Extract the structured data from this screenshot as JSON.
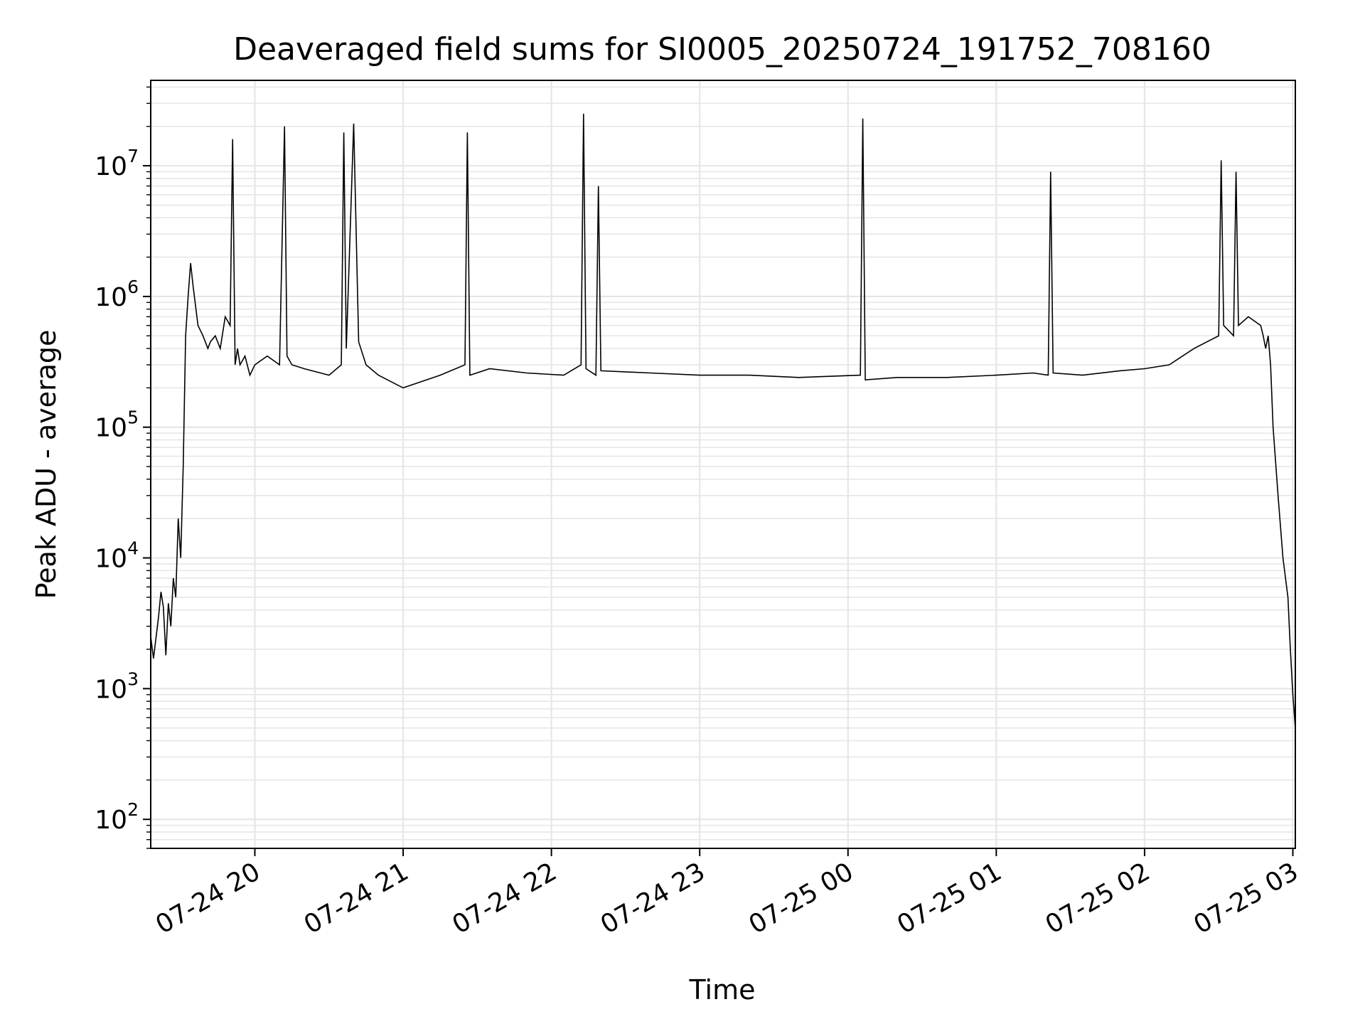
{
  "chart_data": {
    "type": "line",
    "title": "Deaveraged field sums for SI0005_20250724_191752_708160",
    "xlabel": "Time",
    "ylabel": "Peak ADU - average",
    "yscale": "log",
    "ylim": [
      60,
      45000000
    ],
    "xlim": [
      "2025-07-24 19:17:52",
      "2025-07-25 03:01:00"
    ],
    "grid": true,
    "legend": "none",
    "line_color": "#000000",
    "grid_color": "#e6e6e6",
    "x_ticks": [
      {
        "label": "07-24 20",
        "t": "2025-07-24 20:00"
      },
      {
        "label": "07-24 21",
        "t": "2025-07-24 21:00"
      },
      {
        "label": "07-24 22",
        "t": "2025-07-24 22:00"
      },
      {
        "label": "07-24 23",
        "t": "2025-07-24 23:00"
      },
      {
        "label": "07-25 00",
        "t": "2025-07-25 00:00"
      },
      {
        "label": "07-25 01",
        "t": "2025-07-25 01:00"
      },
      {
        "label": "07-25 02",
        "t": "2025-07-25 02:00"
      },
      {
        "label": "07-25 03",
        "t": "2025-07-25 03:00"
      }
    ],
    "y_ticks": [
      {
        "base": "10",
        "exp": "2",
        "value": 100
      },
      {
        "base": "10",
        "exp": "3",
        "value": 1000
      },
      {
        "base": "10",
        "exp": "4",
        "value": 10000
      },
      {
        "base": "10",
        "exp": "5",
        "value": 100000
      },
      {
        "base": "10",
        "exp": "6",
        "value": 1000000
      },
      {
        "base": "10",
        "exp": "7",
        "value": 10000000
      }
    ],
    "series": [
      {
        "x": [
          "2025-07-24 19:17:52",
          "2025-07-24 19:19",
          "2025-07-24 19:21",
          "2025-07-24 19:22",
          "2025-07-24 19:23",
          "2025-07-24 19:24",
          "2025-07-24 19:25",
          "2025-07-24 19:26",
          "2025-07-24 19:27",
          "2025-07-24 19:28",
          "2025-07-24 19:29",
          "2025-07-24 19:30",
          "2025-07-24 19:31",
          "2025-07-24 19:32",
          "2025-07-24 19:33",
          "2025-07-24 19:34",
          "2025-07-24 19:35",
          "2025-07-24 19:37",
          "2025-07-24 19:39",
          "2025-07-24 19:41",
          "2025-07-24 19:42",
          "2025-07-24 19:44",
          "2025-07-24 19:46",
          "2025-07-24 19:48",
          "2025-07-24 19:50",
          "2025-07-24 19:51",
          "2025-07-24 19:52",
          "2025-07-24 19:53",
          "2025-07-24 19:54",
          "2025-07-24 19:56",
          "2025-07-24 19:58",
          "2025-07-24 20:00",
          "2025-07-24 20:05",
          "2025-07-24 20:10",
          "2025-07-24 20:12",
          "2025-07-24 20:13",
          "2025-07-24 20:15",
          "2025-07-24 20:20",
          "2025-07-24 20:30",
          "2025-07-24 20:35",
          "2025-07-24 20:36",
          "2025-07-24 20:37",
          "2025-07-24 20:38",
          "2025-07-24 20:40",
          "2025-07-24 20:42",
          "2025-07-24 20:45",
          "2025-07-24 20:50",
          "2025-07-24 21:00",
          "2025-07-24 21:15",
          "2025-07-24 21:25",
          "2025-07-24 21:26",
          "2025-07-24 21:27",
          "2025-07-24 21:35",
          "2025-07-24 21:50",
          "2025-07-24 22:05",
          "2025-07-24 22:12",
          "2025-07-24 22:13",
          "2025-07-24 22:14",
          "2025-07-24 22:18",
          "2025-07-24 22:19",
          "2025-07-24 22:20",
          "2025-07-24 22:40",
          "2025-07-24 23:00",
          "2025-07-24 23:20",
          "2025-07-24 23:40",
          "2025-07-25 00:05",
          "2025-07-25 00:06",
          "2025-07-25 00:07",
          "2025-07-25 00:20",
          "2025-07-25 00:40",
          "2025-07-25 01:00",
          "2025-07-25 01:15",
          "2025-07-25 01:21",
          "2025-07-25 01:22",
          "2025-07-25 01:23",
          "2025-07-25 01:35",
          "2025-07-25 01:50",
          "2025-07-25 02:00",
          "2025-07-25 02:10",
          "2025-07-25 02:20",
          "2025-07-25 02:30",
          "2025-07-25 02:31",
          "2025-07-25 02:32",
          "2025-07-25 02:36",
          "2025-07-25 02:37",
          "2025-07-25 02:38",
          "2025-07-25 02:42",
          "2025-07-25 02:47",
          "2025-07-25 02:48",
          "2025-07-25 02:49",
          "2025-07-25 02:50",
          "2025-07-25 02:51",
          "2025-07-25 02:52",
          "2025-07-25 02:54",
          "2025-07-25 02:56",
          "2025-07-25 02:58",
          "2025-07-25 02:59",
          "2025-07-25 03:00",
          "2025-07-25 03:01"
        ],
        "y": [
          2500,
          1700,
          3500,
          5500,
          4200,
          1800,
          4500,
          3000,
          7000,
          5000,
          20000,
          10000,
          50000,
          500000,
          1000000,
          1800000,
          1200000,
          600000,
          500000,
          400000,
          450000,
          500000,
          400000,
          700000,
          600000,
          16000000,
          300000,
          400000,
          300000,
          350000,
          250000,
          300000,
          350000,
          300000,
          20000000,
          350000,
          300000,
          280000,
          250000,
          300000,
          18000000,
          400000,
          1500000,
          21000000,
          450000,
          300000,
          250000,
          200000,
          250000,
          300000,
          18000000,
          250000,
          280000,
          260000,
          250000,
          300000,
          25000000,
          280000,
          250000,
          7000000,
          270000,
          260000,
          250000,
          250000,
          240000,
          250000,
          23000000,
          230000,
          240000,
          240000,
          250000,
          260000,
          250000,
          9000000,
          260000,
          250000,
          270000,
          280000,
          300000,
          400000,
          500000,
          11000000,
          600000,
          500000,
          9000000,
          600000,
          700000,
          600000,
          500000,
          400000,
          500000,
          300000,
          100000,
          30000,
          10000,
          5000,
          2000,
          900,
          500
        ]
      }
    ]
  }
}
